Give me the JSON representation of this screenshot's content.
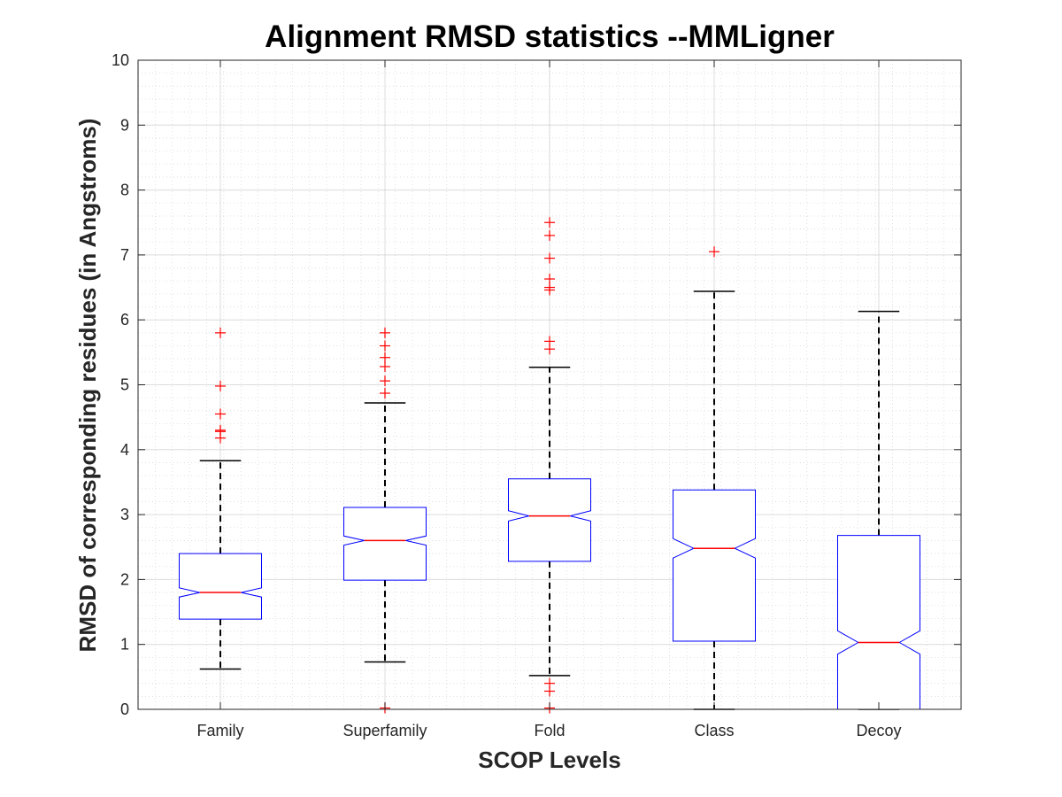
{
  "chart_data": {
    "type": "box",
    "title": "Alignment RMSD statistics --MMLigner",
    "xlabel": "SCOP Levels",
    "ylabel": "RMSD of corresponding residues (in Angstroms)",
    "ylim": [
      0,
      10
    ],
    "yticks": [
      "0",
      "1",
      "2",
      "3",
      "4",
      "5",
      "6",
      "7",
      "8",
      "9",
      "10"
    ],
    "grid": "major-and-minor",
    "notched": true,
    "categories": [
      "Family",
      "Superfamily",
      "Fold",
      "Class",
      "Decoy"
    ],
    "boxes": [
      {
        "name": "Family",
        "q1": 1.39,
        "median": 1.8,
        "q3": 2.4,
        "whisker_low": 0.62,
        "whisker_high": 3.83,
        "notch_low": 1.73,
        "notch_high": 1.87,
        "outliers": [
          4.18,
          4.28,
          4.3,
          4.55,
          4.98,
          5.8
        ]
      },
      {
        "name": "Superfamily",
        "q1": 1.99,
        "median": 2.6,
        "q3": 3.11,
        "whisker_low": 0.73,
        "whisker_high": 4.72,
        "notch_low": 2.53,
        "notch_high": 2.67,
        "outliers": [
          0.02,
          4.87,
          5.06,
          5.28,
          5.42,
          5.6,
          5.8
        ]
      },
      {
        "name": "Fold",
        "q1": 2.28,
        "median": 2.98,
        "q3": 3.55,
        "whisker_low": 0.52,
        "whisker_high": 5.27,
        "notch_low": 2.9,
        "notch_high": 3.06,
        "outliers": [
          0.02,
          0.28,
          0.4,
          5.55,
          5.67,
          6.46,
          6.5,
          6.63,
          6.95,
          7.3,
          7.5
        ]
      },
      {
        "name": "Class",
        "q1": 1.05,
        "median": 2.48,
        "q3": 3.38,
        "whisker_low": 0.0,
        "whisker_high": 6.44,
        "notch_low": 2.33,
        "notch_high": 2.63,
        "outliers": [
          7.05
        ]
      },
      {
        "name": "Decoy",
        "q1": 0.0,
        "median": 1.03,
        "q3": 2.68,
        "whisker_low": 0.0,
        "whisker_high": 6.13,
        "notch_low": 0.85,
        "notch_high": 1.21,
        "outliers": []
      }
    ],
    "colors": {
      "box": "#0000ff",
      "median": "#ff0000",
      "whisker": "#000000",
      "outlier": "#ff0000",
      "grid": "#bfbfbf",
      "axis": "#262626"
    }
  }
}
